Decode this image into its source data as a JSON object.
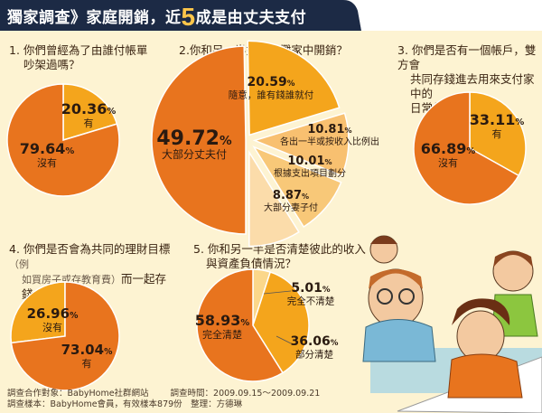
{
  "title": {
    "part1": "獨家調查》家庭開銷，近",
    "big": "5",
    "part2": "成是由丈夫支付"
  },
  "questions": {
    "q1": {
      "line1": "1. 你們曾經為了由誰付帳單",
      "line2": "吵架過嗎？"
    },
    "q2": {
      "line1": "2.你和另一半如何分攤家中開銷？"
    },
    "q3": {
      "line1": "3. 你們是否有一個帳戶，雙方會",
      "line2": "共同存錢進去用來支付家中的",
      "line3": "日常生活費用？"
    },
    "q4": {
      "line1": "4. 你們是否會為共同的理財目標",
      "note1": "（例",
      "note2": "如買房子或存教育費）",
      "line2b": "而一起存",
      "line3": "錢、投資嗎？"
    },
    "q5": {
      "line1": "5. 你和另一半是否清楚彼此的收入",
      "line2": "與資產負債情況？"
    }
  },
  "chart_data": [
    {
      "type": "pie",
      "title": "1. 你們曾經為了由誰付帳單吵架過嗎？",
      "slices": [
        {
          "label": "有",
          "value": 20.36,
          "display": "20.36"
        },
        {
          "label": "沒有",
          "value": 79.64,
          "display": "79.64"
        }
      ],
      "colors": [
        "#f4a51c",
        "#e8741e"
      ]
    },
    {
      "type": "pie",
      "title": "2.你和另一半如何分攤家中開銷？",
      "slices": [
        {
          "label": "大部分丈夫付",
          "value": 49.72,
          "display": "49.72"
        },
        {
          "label": "隨意，誰有錢誰就付",
          "value": 20.59,
          "display": "20.59"
        },
        {
          "label": "各出一半或按收入比例出",
          "value": 10.81,
          "display": "10.81"
        },
        {
          "label": "根據支出項目劃分",
          "value": 10.01,
          "display": "10.01"
        },
        {
          "label": "大部分妻子付",
          "value": 8.87,
          "display": "8.87"
        }
      ],
      "colors": [
        "#e8741e",
        "#f4a51c",
        "#f8c070",
        "#f8c878",
        "#fbdcaa"
      ]
    },
    {
      "type": "pie",
      "title": "3. 你們是否有一個帳戶，雙方會共同存錢進去用來支付家中的日常生活費用？",
      "slices": [
        {
          "label": "有",
          "value": 33.11,
          "display": "33.11"
        },
        {
          "label": "沒有",
          "value": 66.89,
          "display": "66.89"
        }
      ],
      "colors": [
        "#f4a51c",
        "#e8741e"
      ]
    },
    {
      "type": "pie",
      "title": "4. 你們是否會為共同的理財目標（例如買房子或存教育費）而一起存錢、投資嗎？",
      "slices": [
        {
          "label": "沒有",
          "value": 26.96,
          "display": "26.96"
        },
        {
          "label": "有",
          "value": 73.04,
          "display": "73.04"
        }
      ],
      "colors": [
        "#f4a51c",
        "#e8741e"
      ]
    },
    {
      "type": "pie",
      "title": "5. 你和另一半是否清楚彼此的收入與資產負債情況？",
      "slices": [
        {
          "label": "完全不清楚",
          "value": 5.01,
          "display": "5.01"
        },
        {
          "label": "部分清楚",
          "value": 36.06,
          "display": "36.06"
        },
        {
          "label": "完全清楚",
          "value": 58.93,
          "display": "58.93"
        }
      ],
      "colors": [
        "#fbd78a",
        "#f4a51c",
        "#e8741e"
      ]
    }
  ],
  "percent_sign": "%",
  "footer": {
    "line1a": "調查合作對象：BabyHome社群網站",
    "line1b": "調查時間：2009.09.15～2009.09.21",
    "line2": "調查樣本：BabyHome會員，有效樣本879份　整理：方德琳"
  }
}
